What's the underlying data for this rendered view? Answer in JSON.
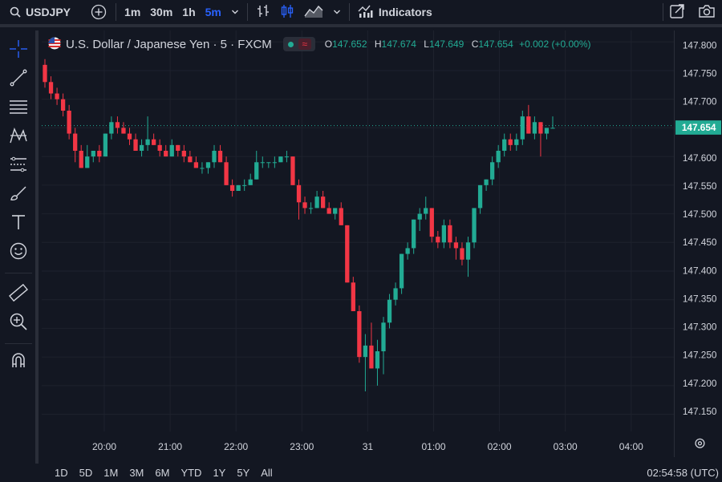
{
  "toolbar": {
    "symbol": "USDJPY",
    "intervals": [
      "1m",
      "30m",
      "1h",
      "5m"
    ],
    "active_interval": "5m",
    "indicators_label": "Indicators"
  },
  "legend": {
    "title": "U.S. Dollar / Japanese Yen · 5 · FXCM",
    "o_key": "O",
    "o_val": "147.652",
    "h_key": "H",
    "h_val": "147.674",
    "l_key": "L",
    "l_val": "147.649",
    "c_key": "C",
    "c_val": "147.654",
    "change": "+0.002 (+0.00%)"
  },
  "colors": {
    "up": "#22ab94",
    "down": "#f23645",
    "background": "#131722",
    "grid": "#1e222d",
    "active": "#2962ff"
  },
  "time_ranges": [
    "1D",
    "5D",
    "1M",
    "3M",
    "6M",
    "YTD",
    "1Y",
    "5Y",
    "All"
  ],
  "clock": "02:54:58 (UTC)",
  "chart_data": {
    "type": "candlestick",
    "x_ticks": [
      "20:00",
      "21:00",
      "22:00",
      "23:00",
      "31",
      "01:00",
      "02:00",
      "03:00",
      "04:00"
    ],
    "y_ticks": [
      "147.800",
      "147.750",
      "147.700",
      "147.650",
      "147.600",
      "147.550",
      "147.500",
      "147.450",
      "147.400",
      "147.350",
      "147.300",
      "147.250",
      "147.200",
      "147.150"
    ],
    "ylim": [
      147.12,
      147.82
    ],
    "last_price": "147.654",
    "candles": [
      [
        147.76,
        147.77,
        147.72,
        147.73
      ],
      [
        147.73,
        147.74,
        147.7,
        147.71
      ],
      [
        147.71,
        147.72,
        147.69,
        147.7
      ],
      [
        147.7,
        147.71,
        147.67,
        147.68
      ],
      [
        147.68,
        147.69,
        147.63,
        147.64
      ],
      [
        147.64,
        147.65,
        147.59,
        147.61
      ],
      [
        147.61,
        147.62,
        147.58,
        147.58
      ],
      [
        147.58,
        147.62,
        147.58,
        147.6
      ],
      [
        147.6,
        147.61,
        147.59,
        147.61
      ],
      [
        147.61,
        147.62,
        147.59,
        147.6
      ],
      [
        147.6,
        147.64,
        147.6,
        147.64
      ],
      [
        147.64,
        147.67,
        147.63,
        147.66
      ],
      [
        147.66,
        147.67,
        147.64,
        147.65
      ],
      [
        147.65,
        147.66,
        147.64,
        147.64
      ],
      [
        147.64,
        147.65,
        147.62,
        147.63
      ],
      [
        147.63,
        147.64,
        147.61,
        147.61
      ],
      [
        147.61,
        147.63,
        147.6,
        147.62
      ],
      [
        147.62,
        147.67,
        147.61,
        147.63
      ],
      [
        147.63,
        147.64,
        147.62,
        147.62
      ],
      [
        147.62,
        147.63,
        147.6,
        147.61
      ],
      [
        147.61,
        147.62,
        147.6,
        147.6
      ],
      [
        147.6,
        147.63,
        147.6,
        147.62
      ],
      [
        147.62,
        147.62,
        147.6,
        147.61
      ],
      [
        147.61,
        147.62,
        147.59,
        147.6
      ],
      [
        147.6,
        147.61,
        147.59,
        147.59
      ],
      [
        147.59,
        147.6,
        147.58,
        147.58
      ],
      [
        147.58,
        147.59,
        147.57,
        147.58
      ],
      [
        147.58,
        147.59,
        147.57,
        147.59
      ],
      [
        147.59,
        147.62,
        147.58,
        147.61
      ],
      [
        147.61,
        147.62,
        147.59,
        147.59
      ],
      [
        147.59,
        147.6,
        147.55,
        147.55
      ],
      [
        147.55,
        147.56,
        147.53,
        147.54
      ],
      [
        147.54,
        147.55,
        147.54,
        147.55
      ],
      [
        147.55,
        147.56,
        147.54,
        147.55
      ],
      [
        147.55,
        147.57,
        147.55,
        147.56
      ],
      [
        147.56,
        147.61,
        147.56,
        147.59
      ],
      [
        147.59,
        147.6,
        147.58,
        147.59
      ],
      [
        147.59,
        147.59,
        147.58,
        147.59
      ],
      [
        147.59,
        147.6,
        147.58,
        147.59
      ],
      [
        147.59,
        147.6,
        147.59,
        147.6
      ],
      [
        147.6,
        147.61,
        147.59,
        147.6
      ],
      [
        147.6,
        147.6,
        147.55,
        147.55
      ],
      [
        147.55,
        147.56,
        147.49,
        147.52
      ],
      [
        147.52,
        147.53,
        147.5,
        147.51
      ],
      [
        147.51,
        147.52,
        147.5,
        147.51
      ],
      [
        147.51,
        147.54,
        147.51,
        147.53
      ],
      [
        147.53,
        147.54,
        147.51,
        147.51
      ],
      [
        147.51,
        147.52,
        147.5,
        147.5
      ],
      [
        147.5,
        147.51,
        147.49,
        147.51
      ],
      [
        147.51,
        147.52,
        147.48,
        147.48
      ],
      [
        147.48,
        147.48,
        147.38,
        147.38
      ],
      [
        147.38,
        147.39,
        147.33,
        147.33
      ],
      [
        147.33,
        147.34,
        147.24,
        147.25
      ],
      [
        147.25,
        147.29,
        147.19,
        147.27
      ],
      [
        147.27,
        147.31,
        147.23,
        147.23
      ],
      [
        147.23,
        147.28,
        147.2,
        147.26
      ],
      [
        147.26,
        147.32,
        147.22,
        147.31
      ],
      [
        147.31,
        147.36,
        147.3,
        147.35
      ],
      [
        147.35,
        147.38,
        147.34,
        147.37
      ],
      [
        147.37,
        147.43,
        147.36,
        147.43
      ],
      [
        147.43,
        147.45,
        147.42,
        147.44
      ],
      [
        147.44,
        147.49,
        147.43,
        147.49
      ],
      [
        147.49,
        147.51,
        147.47,
        147.5
      ],
      [
        147.5,
        147.53,
        147.49,
        147.51
      ],
      [
        147.51,
        147.51,
        147.45,
        147.46
      ],
      [
        147.46,
        147.47,
        147.44,
        147.45
      ],
      [
        147.45,
        147.49,
        147.44,
        147.48
      ],
      [
        147.48,
        147.49,
        147.44,
        147.45
      ],
      [
        147.45,
        147.46,
        147.42,
        147.44
      ],
      [
        147.44,
        147.45,
        147.41,
        147.42
      ],
      [
        147.42,
        147.46,
        147.39,
        147.45
      ],
      [
        147.45,
        147.51,
        147.44,
        147.51
      ],
      [
        147.51,
        147.55,
        147.5,
        147.55
      ],
      [
        147.55,
        147.56,
        147.54,
        147.56
      ],
      [
        147.56,
        147.6,
        147.55,
        147.59
      ],
      [
        147.59,
        147.62,
        147.58,
        147.61
      ],
      [
        147.61,
        147.64,
        147.6,
        147.63
      ],
      [
        147.63,
        147.64,
        147.61,
        147.62
      ],
      [
        147.62,
        147.64,
        147.61,
        147.63
      ],
      [
        147.63,
        147.68,
        147.62,
        147.67
      ],
      [
        147.67,
        147.69,
        147.64,
        147.64
      ],
      [
        147.64,
        147.67,
        147.63,
        147.66
      ],
      [
        147.66,
        147.66,
        147.6,
        147.64
      ],
      [
        147.64,
        147.65,
        147.63,
        147.65
      ],
      [
        147.65,
        147.67,
        147.65,
        147.65
      ]
    ]
  }
}
